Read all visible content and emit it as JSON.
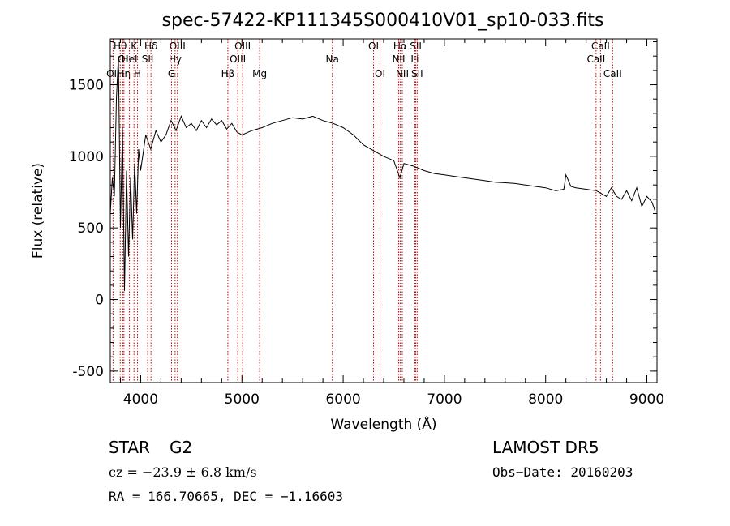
{
  "chart_data": {
    "type": "line",
    "title": "spec-57422-KP111345S000410V01_sp10-033.fits",
    "xlabel": "Wavelength (Å)",
    "ylabel": "Flux (relative)",
    "xlim": [
      3700,
      9100
    ],
    "ylim": [
      -580,
      1820
    ],
    "xticks": [
      4000,
      5000,
      6000,
      7000,
      8000,
      9000
    ],
    "xtick_labels": [
      "4000",
      "5000",
      "6000",
      "7000",
      "8000",
      "9000"
    ],
    "yticks": [
      -500,
      0,
      500,
      1000,
      1500
    ],
    "ytick_labels": [
      "-500",
      "0",
      "500",
      "1000",
      "1500"
    ],
    "grid": false,
    "series": [
      {
        "x": [
          3700,
          3720,
          3740,
          3760,
          3780,
          3800,
          3820,
          3840,
          3860,
          3880,
          3900,
          3920,
          3940,
          3960,
          3980,
          4000,
          4050,
          4100,
          4150,
          4200,
          4250,
          4300,
          4350,
          4400,
          4450,
          4500,
          4550,
          4600,
          4650,
          4700,
          4750,
          4800,
          4850,
          4900,
          4950,
          5000,
          5100,
          5200,
          5300,
          5400,
          5500,
          5600,
          5700,
          5800,
          5900,
          6000,
          6100,
          6200,
          6300,
          6400,
          6500,
          6560,
          6600,
          6700,
          6800,
          6900,
          7000,
          7100,
          7200,
          7300,
          7400,
          7500,
          7600,
          7700,
          7800,
          7900,
          8000,
          8100,
          8180,
          8200,
          8250,
          8300,
          8400,
          8500,
          8550,
          8600,
          8650,
          8700,
          8750,
          8800,
          8850,
          8900,
          8950,
          9000,
          9050,
          9080
        ],
        "y": [
          600,
          850,
          720,
          1400,
          1700,
          500,
          1200,
          60,
          900,
          300,
          850,
          420,
          950,
          600,
          1050,
          900,
          1150,
          1050,
          1180,
          1100,
          1150,
          1250,
          1180,
          1280,
          1200,
          1230,
          1180,
          1250,
          1200,
          1260,
          1220,
          1250,
          1190,
          1230,
          1170,
          1150,
          1180,
          1200,
          1230,
          1250,
          1270,
          1260,
          1280,
          1250,
          1230,
          1200,
          1150,
          1080,
          1040,
          1000,
          970,
          850,
          950,
          930,
          900,
          880,
          870,
          860,
          850,
          840,
          830,
          820,
          815,
          810,
          800,
          790,
          780,
          760,
          770,
          870,
          790,
          780,
          770,
          760,
          740,
          720,
          780,
          720,
          700,
          760,
          690,
          780,
          650,
          720,
          680,
          620
        ]
      }
    ],
    "line_markers": [
      {
        "label": "Hθ",
        "x": 3798,
        "row": 1
      },
      {
        "label": "OI",
        "x": 3825,
        "row": 2
      },
      {
        "label": "OII",
        "x": 3727,
        "row": 3
      },
      {
        "label": "Hη",
        "x": 3835,
        "row": 3
      },
      {
        "label": "K",
        "x": 3934,
        "row": 1
      },
      {
        "label": "HeI",
        "x": 3889,
        "row": 2
      },
      {
        "label": "H",
        "x": 3969,
        "row": 3
      },
      {
        "label": "Hδ",
        "x": 4102,
        "row": 1
      },
      {
        "label": "SII",
        "x": 4069,
        "row": 2
      },
      {
        "label": "OIII",
        "x": 4363,
        "row": 1
      },
      {
        "label": "Hγ",
        "x": 4340,
        "row": 2
      },
      {
        "label": "G",
        "x": 4305,
        "row": 3
      },
      {
        "label": "OIII",
        "x": 5007,
        "row": 1
      },
      {
        "label": "OIII",
        "x": 4959,
        "row": 2
      },
      {
        "label": "Hβ",
        "x": 4861,
        "row": 3
      },
      {
        "label": "Mg",
        "x": 5175,
        "row": 3
      },
      {
        "label": "Na",
        "x": 5893,
        "row": 2
      },
      {
        "label": "OI",
        "x": 6300,
        "row": 1
      },
      {
        "label": "OI",
        "x": 6364,
        "row": 3
      },
      {
        "label": "Hα",
        "x": 6563,
        "row": 1
      },
      {
        "label": "NII",
        "x": 6548,
        "row": 2
      },
      {
        "label": "NII",
        "x": 6584,
        "row": 3
      },
      {
        "label": "SII",
        "x": 6717,
        "row": 1
      },
      {
        "label": "Li",
        "x": 6708,
        "row": 2
      },
      {
        "label": "SII",
        "x": 6731,
        "row": 3
      },
      {
        "label": "CaII",
        "x": 8542,
        "row": 1
      },
      {
        "label": "CaII",
        "x": 8498,
        "row": 2
      },
      {
        "label": "CaII",
        "x": 8662,
        "row": 3
      }
    ]
  },
  "info": {
    "class": "STAR",
    "subclass": "G2",
    "survey": "LAMOST DR5",
    "cz": "cz = −23.9 ± 6.8 km/s",
    "obs_date": "Obs−Date: 20160203",
    "coords": "RA = 166.70665, DEC =  −1.16603"
  },
  "colors": {
    "line": "#000000",
    "marker": "#cc0000",
    "background": "#ffffff"
  }
}
